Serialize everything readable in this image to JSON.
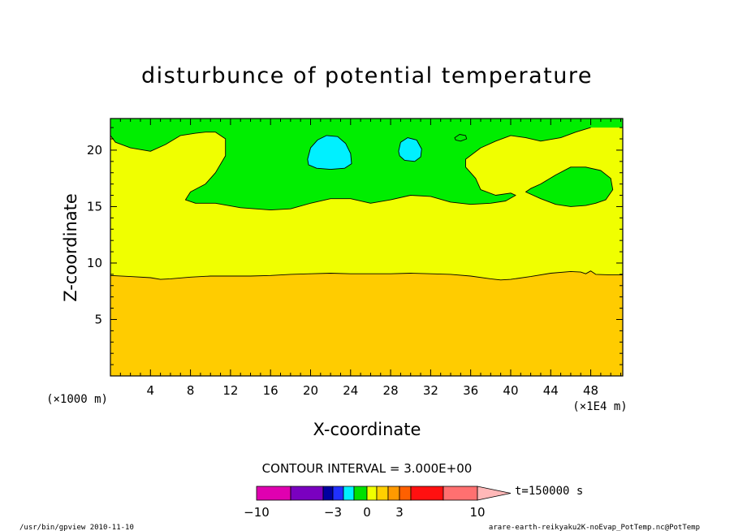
{
  "chart_data": {
    "type": "heatmap",
    "title": "disturbunce of potential temperature",
    "xlabel": "X-coordinate",
    "ylabel": "Z-coordinate",
    "x_unit_left": "(×1000 m)",
    "x_unit_right": "(×1E4 m)",
    "x_ticks": [
      "4",
      "8",
      "12",
      "16",
      "20",
      "24",
      "28",
      "32",
      "36",
      "40",
      "44",
      "48"
    ],
    "x_tick_values": [
      4,
      8,
      12,
      16,
      20,
      24,
      28,
      32,
      36,
      40,
      44,
      48
    ],
    "y_ticks": [
      "5",
      "10",
      "15",
      "20"
    ],
    "y_tick_values": [
      5,
      10,
      15,
      20
    ],
    "xlim": [
      0,
      51.2
    ],
    "ylim": [
      0,
      22.8
    ],
    "contour_interval_text": "CONTOUR INTERVAL = 3.000E+00",
    "time_label": "t=150000 s",
    "colorbar_labels": [
      "−10",
      "−3",
      "0",
      "3",
      "10"
    ],
    "colorbar_label_values": [
      -10,
      -3,
      0,
      3,
      10
    ],
    "colorbar_colors": [
      "#e000b0",
      "#7a00c0",
      "#0000a0",
      "#2030ff",
      "#00f0ff",
      "#00e000",
      "#f0ff00",
      "#ffd000",
      "#ff9a00",
      "#ff6000",
      "#ff1010",
      "#ff7070",
      "#ffb8b8"
    ],
    "colors": {
      "band_lower": "#ffcc00",
      "band_middle": "#f0ff00",
      "band_green": "#00ee00",
      "band_cyan": "#00f0ff"
    },
    "regions": [
      {
        "name": "lower",
        "color": "#ffcc00",
        "boundary_x": [
          0,
          2,
          4,
          5,
          6,
          8,
          10,
          12,
          14,
          16,
          18,
          20,
          22,
          24,
          26,
          28,
          30,
          32,
          34,
          36,
          38,
          39,
          40,
          42,
          44,
          46,
          47,
          47.5,
          48,
          48.5,
          50,
          51.2
        ],
        "boundary_z": [
          8.9,
          8.8,
          8.7,
          8.55,
          8.6,
          8.75,
          8.85,
          8.85,
          8.85,
          8.9,
          9.0,
          9.05,
          9.1,
          9.05,
          9.05,
          9.05,
          9.1,
          9.05,
          9.0,
          8.85,
          8.6,
          8.5,
          8.55,
          8.8,
          9.1,
          9.25,
          9.2,
          9.05,
          9.3,
          9.0,
          8.95,
          8.95
        ]
      },
      {
        "name": "middle",
        "color": "#f0ff00"
      },
      {
        "name": "green_upper",
        "color": "#00ee00",
        "boundary_x": [
          0,
          0.5,
          2,
          4,
          5.5,
          7,
          8.5,
          9.5,
          10.5,
          11.5,
          11.5,
          10.5,
          9.5,
          8,
          7.5,
          8.5,
          10.5,
          13,
          16,
          18,
          20,
          22,
          24,
          26,
          28,
          30,
          32,
          34,
          36,
          38,
          39.5,
          40.5,
          40,
          38.5,
          37,
          36.5,
          35.5,
          35.5,
          37,
          38.5,
          40,
          41.5,
          43,
          45,
          46.5,
          48,
          51.2,
          51.2
        ],
        "boundary_z": [
          21.3,
          20.7,
          20.2,
          19.9,
          20.5,
          21.3,
          21.5,
          21.6,
          21.6,
          21.0,
          19.5,
          18.0,
          17.0,
          16.3,
          15.6,
          15.3,
          15.3,
          14.9,
          14.7,
          14.8,
          15.3,
          15.7,
          15.7,
          15.3,
          15.6,
          16.0,
          15.9,
          15.4,
          15.2,
          15.3,
          15.5,
          16.0,
          16.2,
          16.0,
          16.5,
          17.5,
          18.5,
          19.2,
          20.2,
          20.8,
          21.3,
          21.1,
          20.8,
          21.1,
          21.6,
          22.0,
          22.0,
          22.8
        ]
      },
      {
        "name": "green_right",
        "color": "#00ee00",
        "boundary_x": [
          41.5,
          43,
          44.5,
          46,
          47.5,
          48.5,
          49.5,
          50.2,
          50,
          49,
          47.5,
          46,
          44.5,
          43,
          42
        ],
        "boundary_z": [
          16.3,
          15.7,
          15.2,
          15.0,
          15.1,
          15.3,
          15.6,
          16.5,
          17.5,
          18.2,
          18.5,
          18.5,
          17.8,
          17.0,
          16.6
        ]
      },
      {
        "name": "cyan_left",
        "color": "#00f0ff",
        "boundary_x": [
          19.7,
          20.0,
          20.7,
          21.6,
          22.7,
          23.5,
          24.0,
          24.1,
          23.4,
          22.0,
          20.6,
          19.8
        ],
        "boundary_z": [
          19.2,
          20.2,
          20.9,
          21.3,
          21.2,
          20.6,
          19.7,
          18.8,
          18.4,
          18.3,
          18.4,
          18.7
        ]
      },
      {
        "name": "cyan_right",
        "color": "#00f0ff",
        "boundary_x": [
          28.8,
          29.0,
          29.7,
          30.6,
          31.1,
          31.0,
          30.4,
          29.4,
          28.9
        ],
        "boundary_z": [
          19.9,
          20.7,
          21.1,
          20.9,
          20.1,
          19.4,
          19.0,
          19.1,
          19.5
        ]
      },
      {
        "name": "green_dot",
        "color": "#00ee00",
        "boundary_x": [
          34.4,
          34.9,
          35.5,
          35.6,
          35.0,
          34.5
        ],
        "boundary_z": [
          21.1,
          21.4,
          21.3,
          21.0,
          20.8,
          20.9
        ]
      }
    ]
  },
  "footer": {
    "left": "/usr/bin/gpview  2010-11-10",
    "right": "arare-earth-reikyaku2K-noEvap_PotTemp.nc@PotTemp"
  }
}
